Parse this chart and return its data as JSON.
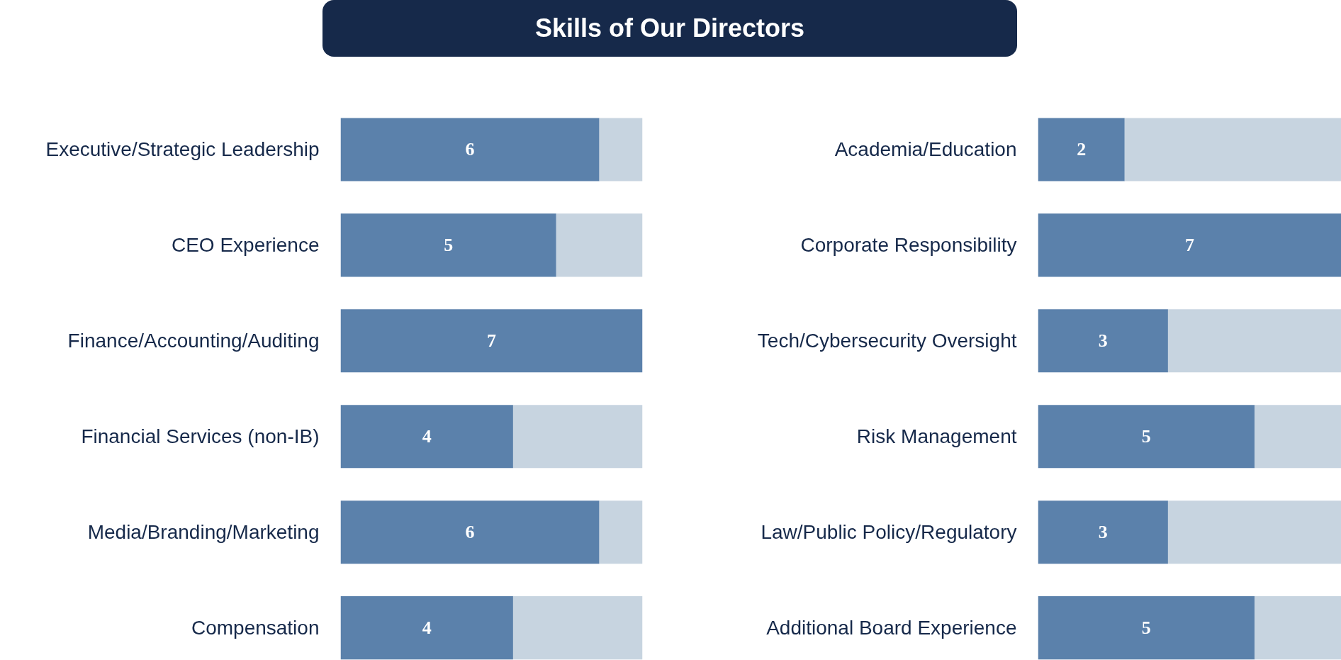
{
  "chart_data": [
    {
      "type": "bar",
      "title": "Skills of Our Directors",
      "orientation": "horizontal",
      "stacked": true,
      "xlim": [
        0,
        7
      ],
      "tick_labels": "y",
      "categories": [
        "Executive/Strategic Leadership",
        "CEO Experience",
        "Finance/Accounting/Auditing",
        "Financial Services (non-IB)",
        "Media/Branding/Marketing",
        "Compensation"
      ],
      "series": [
        {
          "color": "#5b81ab",
          "values": [
            6,
            5,
            7,
            4,
            6,
            4
          ],
          "value_labels": [
            "6",
            "5",
            "7",
            "4",
            "6",
            "4"
          ]
        },
        {
          "color": "#c7d4e0",
          "values": [
            1,
            2,
            0,
            3,
            1,
            3
          ]
        }
      ]
    },
    {
      "type": "bar",
      "orientation": "horizontal",
      "stacked": true,
      "xlim": [
        0,
        7
      ],
      "tick_labels": "y",
      "categories": [
        "Academia/Education",
        "Corporate Responsibility",
        "Tech/Cybersecurity Oversight",
        "Risk Management",
        "Law/Public Policy/Regulatory",
        "Additional Board Experience"
      ],
      "series": [
        {
          "color": "#5b81ab",
          "values": [
            2,
            7,
            3,
            5,
            3,
            5
          ],
          "value_labels": [
            "2",
            "7",
            "3",
            "5",
            "3",
            "5"
          ]
        },
        {
          "color": "#c7d4e0",
          "values": [
            5,
            0,
            4,
            2,
            4,
            2
          ]
        }
      ]
    }
  ]
}
